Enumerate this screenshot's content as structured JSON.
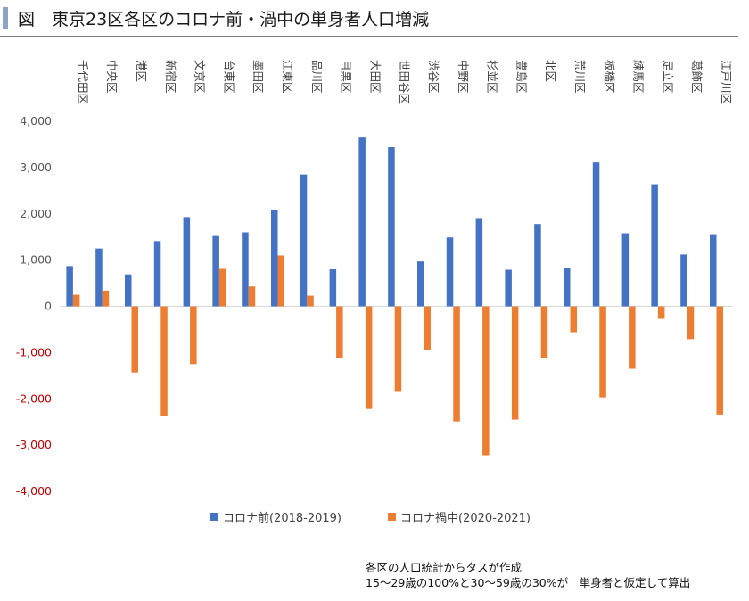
{
  "header": {
    "title": "図　東京23区各区のコロナ前・渦中の単身者人口増減"
  },
  "colors": {
    "pre": "#4472c4",
    "during": "#ed7d31",
    "negative_tick": "#c00000",
    "positive_tick": "#595959"
  },
  "chart_data": {
    "type": "bar",
    "title": "図　東京23区各区のコロナ前・渦中の単身者人口増減",
    "xlabel": "",
    "ylabel": "",
    "categories": [
      "千代田区",
      "中央区",
      "港区",
      "新宿区",
      "文京区",
      "台東区",
      "墨田区",
      "江東区",
      "品川区",
      "目黒区",
      "大田区",
      "世田谷区",
      "渋谷区",
      "中野区",
      "杉並区",
      "豊島区",
      "北区",
      "荒川区",
      "板橋区",
      "練馬区",
      "足立区",
      "葛飾区",
      "江戸川区"
    ],
    "series": [
      {
        "name": "コロナ前(2018-2019)",
        "values": [
          870,
          1250,
          690,
          1410,
          1930,
          1520,
          1600,
          2090,
          2850,
          800,
          3650,
          3440,
          970,
          1490,
          1890,
          790,
          1780,
          830,
          3110,
          1580,
          2640,
          1120,
          1560
        ]
      },
      {
        "name": "コロナ禍中(2020-2021)",
        "values": [
          250,
          340,
          -1430,
          -2370,
          -1250,
          810,
          430,
          1100,
          230,
          -1110,
          -2220,
          -1850,
          -950,
          -2490,
          -3220,
          -2450,
          -1110,
          -560,
          -1970,
          -1350,
          -270,
          -710,
          -2340
        ]
      }
    ],
    "ylim": [
      -4000,
      4000
    ],
    "yticks": [
      4000,
      3000,
      2000,
      1000,
      0,
      -1000,
      -2000,
      -3000,
      -4000
    ],
    "ytick_labels": [
      "4,000",
      "3,000",
      "2,000",
      "1,000",
      "0",
      "-1,000",
      "-2,000",
      "-3,000",
      "-4,000"
    ],
    "grid": false,
    "legend_position": "bottom"
  },
  "note": {
    "line1": "各区の人口統計からタスが作成",
    "line2": "15～29歳の100%と30～59歳の30%が　単身者と仮定して算出"
  }
}
